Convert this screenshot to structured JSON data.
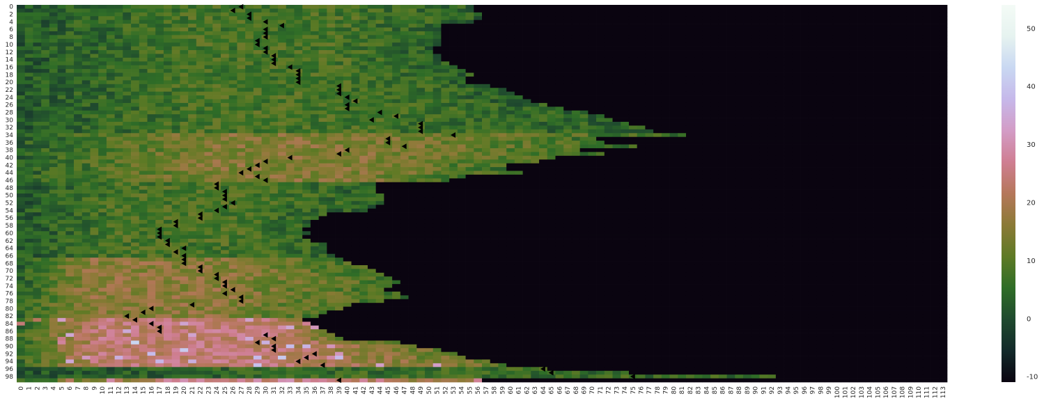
{
  "chart_data": {
    "type": "heatmap",
    "title": "",
    "xlabel": "",
    "ylabel": "",
    "rows": 100,
    "cols": 114,
    "x_tick_labels": [
      "0",
      "1",
      "2",
      "3",
      "4",
      "5",
      "6",
      "7",
      "8",
      "9",
      "10",
      "11",
      "12",
      "13",
      "14",
      "15",
      "16",
      "17",
      "18",
      "19",
      "20",
      "21",
      "22",
      "23",
      "24",
      "25",
      "26",
      "27",
      "28",
      "29",
      "30",
      "31",
      "32",
      "33",
      "34",
      "35",
      "36",
      "37",
      "38",
      "39",
      "40",
      "41",
      "42",
      "43",
      "44",
      "45",
      "46",
      "47",
      "48",
      "49",
      "50",
      "51",
      "52",
      "53",
      "54",
      "55",
      "56",
      "57",
      "58",
      "59",
      "60",
      "61",
      "62",
      "63",
      "64",
      "65",
      "66",
      "67",
      "68",
      "69",
      "70",
      "71",
      "72",
      "73",
      "74",
      "75",
      "76",
      "77",
      "78",
      "79",
      "80",
      "81",
      "82",
      "83",
      "84",
      "85",
      "86",
      "87",
      "88",
      "89",
      "90",
      "91",
      "92",
      "93",
      "94",
      "95",
      "96",
      "97",
      "98",
      "99",
      "100",
      "101",
      "102",
      "103",
      "104",
      "105",
      "106",
      "107",
      "108",
      "109",
      "110",
      "111",
      "112",
      "113"
    ],
    "y_tick_labels": [
      "0",
      "2",
      "4",
      "6",
      "8",
      "10",
      "12",
      "14",
      "16",
      "18",
      "20",
      "22",
      "24",
      "26",
      "28",
      "30",
      "32",
      "34",
      "36",
      "38",
      "40",
      "42",
      "44",
      "46",
      "48",
      "50",
      "52",
      "54",
      "56",
      "58",
      "60",
      "62",
      "64",
      "66",
      "68",
      "70",
      "72",
      "74",
      "76",
      "78",
      "80",
      "82",
      "84",
      "86",
      "88",
      "90",
      "92",
      "94",
      "96",
      "98"
    ],
    "colormap": "cubehelix",
    "colorbar": {
      "vmin": -11,
      "vmax": 54,
      "ticks": [
        "50",
        "40",
        "30",
        "20",
        "10",
        "0",
        "-10"
      ],
      "tick_values": [
        50,
        40,
        30,
        20,
        10,
        0,
        -10
      ],
      "stops": [
        "#0a0410",
        "#132a2a",
        "#1f4a2e",
        "#2f6d27",
        "#5e7a25",
        "#8b7a36",
        "#b5775a",
        "#cf7e92",
        "#d39cc6",
        "#c6b8ea",
        "#c9d8f2",
        "#e6f3f0",
        "#f4fbf6"
      ]
    },
    "empty_value": -11,
    "row_extent": [
      56,
      56,
      57,
      57,
      56,
      52,
      52,
      52,
      52,
      52,
      52,
      51,
      51,
      52,
      52,
      53,
      54,
      55,
      56,
      55,
      55,
      58,
      60,
      61,
      62,
      63,
      65,
      67,
      70,
      72,
      73,
      75,
      77,
      78,
      82,
      71,
      72,
      76,
      69,
      72,
      66,
      64,
      60,
      60,
      62,
      55,
      53,
      44,
      44,
      44,
      45,
      45,
      45,
      44,
      43,
      38,
      37,
      36,
      36,
      35,
      36,
      35,
      36,
      38,
      38,
      38,
      39,
      40,
      41,
      43,
      44,
      45,
      46,
      47,
      46,
      45,
      47,
      48,
      45,
      41,
      40,
      38,
      37,
      35,
      36,
      37,
      38,
      39,
      40,
      47,
      49,
      52,
      54,
      55,
      58,
      60,
      65,
      75,
      93,
      57
    ],
    "bands": [
      {
        "rows": [
          0,
          33
        ],
        "level": 8,
        "peak_cols": [
          22,
          38
        ]
      },
      {
        "rows": [
          34,
          46
        ],
        "level": 15,
        "peak_cols": [
          24,
          42
        ]
      },
      {
        "rows": [
          47,
          66
        ],
        "level": 8,
        "peak_cols": [
          12,
          28
        ]
      },
      {
        "rows": [
          67,
          82
        ],
        "level": 16,
        "peak_cols": [
          8,
          24
        ]
      },
      {
        "rows": [
          83,
          95
        ],
        "level": 24,
        "peak_cols": [
          10,
          30
        ]
      },
      {
        "rows": [
          96,
          98
        ],
        "level": 6,
        "peak_cols": [
          40,
          90
        ]
      },
      {
        "rows": [
          99,
          99
        ],
        "level": 26,
        "peak_cols": [
          20,
          40
        ]
      }
    ],
    "markers": [
      {
        "row": 0,
        "col": 27
      },
      {
        "row": 1,
        "col": 26
      },
      {
        "row": 2,
        "col": 28
      },
      {
        "row": 3,
        "col": 28
      },
      {
        "row": 4,
        "col": 30
      },
      {
        "row": 5,
        "col": 32
      },
      {
        "row": 6,
        "col": 30
      },
      {
        "row": 7,
        "col": 30
      },
      {
        "row": 8,
        "col": 30
      },
      {
        "row": 9,
        "col": 29
      },
      {
        "row": 10,
        "col": 29
      },
      {
        "row": 11,
        "col": 30
      },
      {
        "row": 12,
        "col": 30
      },
      {
        "row": 13,
        "col": 31
      },
      {
        "row": 14,
        "col": 31
      },
      {
        "row": 15,
        "col": 31
      },
      {
        "row": 16,
        "col": 33
      },
      {
        "row": 17,
        "col": 34
      },
      {
        "row": 18,
        "col": 34
      },
      {
        "row": 19,
        "col": 34
      },
      {
        "row": 20,
        "col": 34
      },
      {
        "row": 21,
        "col": 39
      },
      {
        "row": 22,
        "col": 39
      },
      {
        "row": 23,
        "col": 39
      },
      {
        "row": 24,
        "col": 40
      },
      {
        "row": 25,
        "col": 41
      },
      {
        "row": 26,
        "col": 40
      },
      {
        "row": 27,
        "col": 40
      },
      {
        "row": 28,
        "col": 44
      },
      {
        "row": 29,
        "col": 46
      },
      {
        "row": 30,
        "col": 43
      },
      {
        "row": 31,
        "col": 49
      },
      {
        "row": 32,
        "col": 49
      },
      {
        "row": 33,
        "col": 49
      },
      {
        "row": 34,
        "col": 53
      },
      {
        "row": 35,
        "col": 45
      },
      {
        "row": 36,
        "col": 45
      },
      {
        "row": 37,
        "col": 47
      },
      {
        "row": 38,
        "col": 40
      },
      {
        "row": 39,
        "col": 39
      },
      {
        "row": 40,
        "col": 33
      },
      {
        "row": 41,
        "col": 30
      },
      {
        "row": 42,
        "col": 29
      },
      {
        "row": 43,
        "col": 28
      },
      {
        "row": 44,
        "col": 27
      },
      {
        "row": 45,
        "col": 29
      },
      {
        "row": 46,
        "col": 30
      },
      {
        "row": 47,
        "col": 24
      },
      {
        "row": 48,
        "col": 24
      },
      {
        "row": 49,
        "col": 25
      },
      {
        "row": 50,
        "col": 25
      },
      {
        "row": 51,
        "col": 25
      },
      {
        "row": 52,
        "col": 26
      },
      {
        "row": 53,
        "col": 25
      },
      {
        "row": 54,
        "col": 24
      },
      {
        "row": 55,
        "col": 22
      },
      {
        "row": 56,
        "col": 22
      },
      {
        "row": 57,
        "col": 19
      },
      {
        "row": 58,
        "col": 19
      },
      {
        "row": 59,
        "col": 17
      },
      {
        "row": 60,
        "col": 17
      },
      {
        "row": 61,
        "col": 17
      },
      {
        "row": 62,
        "col": 18
      },
      {
        "row": 63,
        "col": 18
      },
      {
        "row": 64,
        "col": 20
      },
      {
        "row": 65,
        "col": 19
      },
      {
        "row": 66,
        "col": 20
      },
      {
        "row": 67,
        "col": 20
      },
      {
        "row": 68,
        "col": 20
      },
      {
        "row": 69,
        "col": 22
      },
      {
        "row": 70,
        "col": 22
      },
      {
        "row": 71,
        "col": 24
      },
      {
        "row": 72,
        "col": 24
      },
      {
        "row": 73,
        "col": 25
      },
      {
        "row": 74,
        "col": 25
      },
      {
        "row": 75,
        "col": 26
      },
      {
        "row": 76,
        "col": 25
      },
      {
        "row": 77,
        "col": 27
      },
      {
        "row": 78,
        "col": 27
      },
      {
        "row": 79,
        "col": 21
      },
      {
        "row": 80,
        "col": 16
      },
      {
        "row": 81,
        "col": 15
      },
      {
        "row": 82,
        "col": 13
      },
      {
        "row": 83,
        "col": 14
      },
      {
        "row": 84,
        "col": 16
      },
      {
        "row": 85,
        "col": 17
      },
      {
        "row": 86,
        "col": 17
      },
      {
        "row": 87,
        "col": 30
      },
      {
        "row": 88,
        "col": 31
      },
      {
        "row": 89,
        "col": 29
      },
      {
        "row": 90,
        "col": 31
      },
      {
        "row": 91,
        "col": 31
      },
      {
        "row": 92,
        "col": 36
      },
      {
        "row": 93,
        "col": 35
      },
      {
        "row": 94,
        "col": 34
      },
      {
        "row": 95,
        "col": 37
      },
      {
        "row": 96,
        "col": 64
      },
      {
        "row": 97,
        "col": 65
      },
      {
        "row": 98,
        "col": 75
      },
      {
        "row": 99,
        "col": 39
      }
    ]
  }
}
